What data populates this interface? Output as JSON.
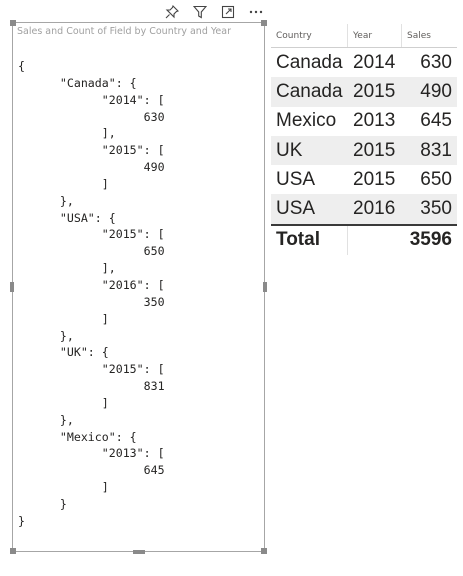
{
  "toolbar": {
    "icons": [
      "pin-icon",
      "filter-icon",
      "focus-mode-icon",
      "more-options-icon"
    ]
  },
  "left_visual": {
    "title": "Sales and Count of Field by Country and Year",
    "json_text": "{\n      \"Canada\": {\n            \"2014\": [\n                  630\n            ],\n            \"2015\": [\n                  490\n            ]\n      },\n      \"USA\": {\n            \"2015\": [\n                  650\n            ],\n            \"2016\": [\n                  350\n            ]\n      },\n      \"UK\": {\n            \"2015\": [\n                  831\n            ]\n      },\n      \"Mexico\": {\n            \"2013\": [\n                  645\n            ]\n      }\n}"
  },
  "table": {
    "columns": [
      "Country",
      "Year",
      "Sales"
    ],
    "rows": [
      {
        "country": "Canada",
        "year": "2014",
        "sales": "630"
      },
      {
        "country": "Canada",
        "year": "2015",
        "sales": "490"
      },
      {
        "country": "Mexico",
        "year": "2013",
        "sales": "645"
      },
      {
        "country": "UK",
        "year": "2015",
        "sales": "831"
      },
      {
        "country": "USA",
        "year": "2015",
        "sales": "650"
      },
      {
        "country": "USA",
        "year": "2016",
        "sales": "350"
      }
    ],
    "total_label": "Total",
    "total_value": "3596"
  }
}
